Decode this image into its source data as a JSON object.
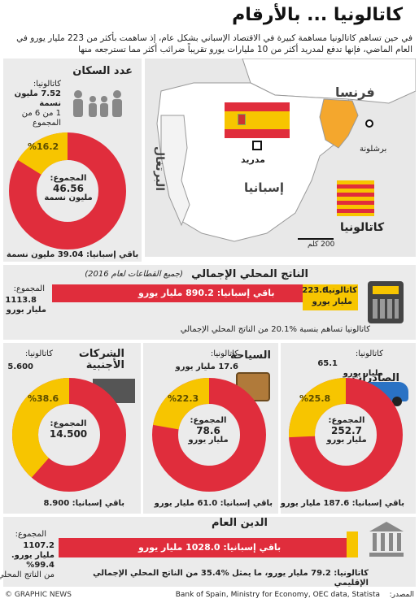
{
  "title": "كاتالونيا ... بالأرقام",
  "intro": "في حين تساهم كاتالونيا مساهمة كبيرة في الاقتصاد الإسباني بشكل عام، إذ ساهمت بأكثر من 223 مليار يورو في العام الماضي، فإنها تدفع لمدريد أكثر من 10 مليارات يورو تقريباً ضرائب أكثر مما تسترجعه منها",
  "map": {
    "france": "فرنسا",
    "portugal": "البرتغال",
    "spain": "إسبانيا",
    "madrid": "مدريد",
    "barcelona": "برشلونة",
    "catalonia": "كاتالونيا",
    "scale": "200 كلم"
  },
  "population": {
    "title": "عدد السكان",
    "catalonia_label": "كاتالونيا:",
    "catalonia_value": "7.52 مليون نسمة",
    "ratio": "1 من 6 من المجموع",
    "pct": "%16.2",
    "total_label": "المجموع:",
    "total_value": "46.56",
    "total_unit": "مليون نسمة",
    "rest": "باقي إسبانيا: 39.04 مليون نسمة"
  },
  "gdp": {
    "title": "الناتج المحلي الإجمالي",
    "subtitle": "(جميع القطاعات لعام 2016)",
    "total_label": "المجموع:",
    "total_value": "1113.8",
    "total_unit": "مليار يورو",
    "rest_label": "باقي إسبانيا: 890.2 مليار يورو",
    "cat_label": "كاتالونيا:",
    "cat_value": "223.6",
    "cat_unit": "مليار يورو",
    "note": "كاتالونيا تساهم بنسبة %20.1 من الناتج المحلي الإجمالي"
  },
  "exports": {
    "title": "الصادرات",
    "cat_label": "كاتالونيا:",
    "cat_value": "65.1",
    "cat_unit": "مليار يورو",
    "pct": "%25.8",
    "total_label": "المجموع:",
    "total_value": "252.7",
    "total_unit": "مليار يورو",
    "rest": "باقي إسبانيا: 187.6 مليار يورو"
  },
  "tourism": {
    "title": "السياحة",
    "cat_label": "كاتالونيا:",
    "cat_value": "17.6 مليار يورو",
    "pct": "%22.3",
    "total_label": "المجموع:",
    "total_value": "78.6",
    "total_unit": "مليار يورو",
    "rest": "باقي إسبانيا: 61.0 مليار يورو"
  },
  "foreign": {
    "title1": "الشركات",
    "title2": "الأجنبية",
    "cat_label": "كاتالونيا:",
    "cat_value": "5.600",
    "pct": "%38.6",
    "total_label": "المجموع:",
    "total_value": "14.500",
    "rest": "باقي إسبانيا: 8.900"
  },
  "debt": {
    "title": "الدين العام",
    "total_label": "المجموع:",
    "total_value": "1107.2 مليار يورو.",
    "total_pct": "%99.4",
    "total_note": "من الناتج المحلي",
    "rest_label": "باقي إسبانيا: 1028.0 مليار يورو",
    "cat_note": "كاتالونيا: 79.2 مليار يورو، ما يمثل %35.4 من الناتج المحلي الإجمالي الإقليمي"
  },
  "footer": {
    "logo": "© GRAPHIC NEWS",
    "source_label": "المصدر:",
    "source": "Bank of Spain, Ministry for Economy, OEC data, Statista"
  },
  "colors": {
    "red": "#e02d3c",
    "yellow": "#f7c500",
    "orange": "#f4a72d",
    "grey": "#d8d8d8"
  }
}
